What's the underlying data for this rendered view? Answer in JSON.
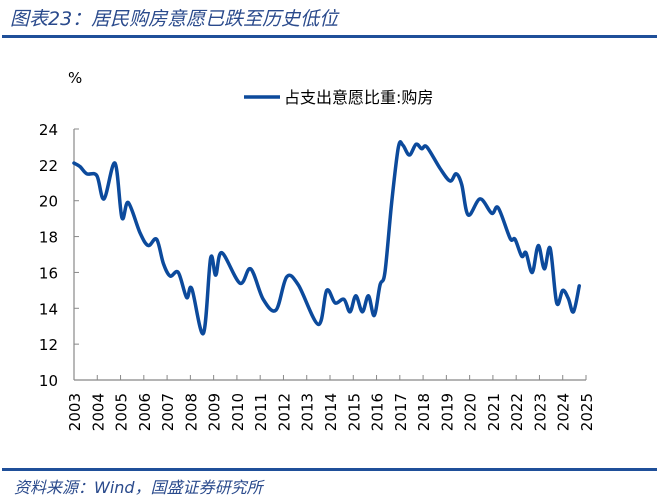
{
  "title": "图表23：居民购房意愿已跌至历史低位",
  "source": "资料来源：Wind，国盛证券研究所",
  "colors": {
    "line": "#0c4a9c",
    "rule": "#1f4f99",
    "title": "#2a4a8c"
  },
  "chart_data": {
    "type": "line",
    "ylabel": "%",
    "ylim": [
      10,
      24
    ],
    "yticks": [
      "10",
      "12",
      "14",
      "16",
      "18",
      "20",
      "22",
      "24"
    ],
    "xlim": [
      2003,
      2025
    ],
    "xticks": [
      "2003",
      "2004",
      "2005",
      "2006",
      "2007",
      "2008",
      "2009",
      "2010",
      "2011",
      "2012",
      "2013",
      "2014",
      "2015",
      "2016",
      "2017",
      "2018",
      "2019",
      "2020",
      "2021",
      "2022",
      "2023",
      "2024",
      "2025"
    ],
    "grid": false,
    "legend": "top-center",
    "series": [
      {
        "name": "占支出意愿比重:购房",
        "x": [
          2003.0,
          2003.26,
          2003.55,
          2003.98,
          2004.29,
          2004.76,
          2005.06,
          2005.33,
          2005.84,
          2006.19,
          2006.55,
          2006.84,
          2007.13,
          2007.48,
          2007.84,
          2008.06,
          2008.56,
          2008.87,
          2009.09,
          2009.35,
          2010.13,
          2010.59,
          2011.13,
          2011.68,
          2012.14,
          2012.64,
          2013.5,
          2013.86,
          2014.22,
          2014.6,
          2014.86,
          2015.11,
          2015.39,
          2015.65,
          2015.9,
          2016.15,
          2016.36,
          2016.65,
          2016.94,
          2017.13,
          2017.41,
          2017.7,
          2017.94,
          2018.16,
          2018.73,
          2019.16,
          2019.42,
          2019.66,
          2019.94,
          2020.45,
          2020.95,
          2021.23,
          2021.74,
          2021.95,
          2022.24,
          2022.42,
          2022.69,
          2022.95,
          2023.21,
          2023.46,
          2023.74,
          2024.0,
          2024.24,
          2024.46,
          2024.71
        ],
        "y": [
          22.1,
          21.9,
          21.5,
          21.4,
          20.1,
          22.1,
          19.05,
          19.9,
          18.2,
          17.5,
          17.85,
          16.5,
          15.8,
          16.0,
          14.6,
          15.1,
          12.6,
          16.8,
          15.85,
          17.1,
          15.4,
          16.2,
          14.5,
          13.9,
          15.75,
          15.3,
          13.1,
          15.0,
          14.3,
          14.5,
          13.8,
          14.7,
          13.8,
          14.7,
          13.6,
          15.3,
          16.0,
          19.9,
          23.0,
          23.1,
          22.55,
          23.15,
          22.9,
          23.0,
          21.8,
          21.1,
          21.5,
          20.9,
          19.2,
          20.1,
          19.3,
          19.6,
          17.9,
          17.85,
          16.9,
          17.1,
          16.0,
          17.5,
          16.2,
          17.35,
          14.3,
          15.0,
          14.55,
          13.8,
          15.25
        ]
      }
    ]
  }
}
